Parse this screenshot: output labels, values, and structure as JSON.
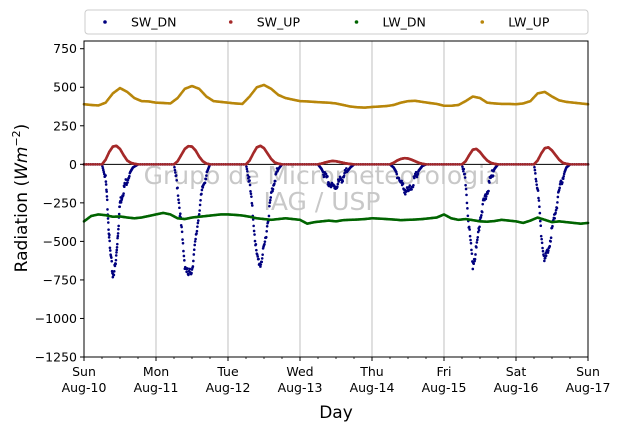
{
  "chart_data": {
    "type": "scatter",
    "xlabel": "Day",
    "ylabel_main": "Radiation (",
    "ylabel_unit": "Wm",
    "ylabel_exp": "−2",
    "ylabel_close": ")",
    "ylim": [
      -1250,
      800
    ],
    "yticks": [
      -1250,
      -1000,
      -750,
      -500,
      -250,
      0,
      250,
      500,
      750
    ],
    "ytick_labels": [
      "−1250",
      "−1000",
      "−750",
      "−500",
      "−250",
      "0",
      "250",
      "500",
      "750"
    ],
    "xlim": [
      0,
      7
    ],
    "xticks": [
      {
        "pos": 0,
        "day": "Sun",
        "date": "Aug-10"
      },
      {
        "pos": 1,
        "day": "Mon",
        "date": "Aug-11"
      },
      {
        "pos": 2,
        "day": "Tue",
        "date": "Aug-12"
      },
      {
        "pos": 3,
        "day": "Wed",
        "date": "Aug-13"
      },
      {
        "pos": 4,
        "day": "Thu",
        "date": "Aug-14"
      },
      {
        "pos": 5,
        "day": "Fri",
        "date": "Aug-15"
      },
      {
        "pos": 6,
        "day": "Sat",
        "date": "Aug-16"
      },
      {
        "pos": 7,
        "day": "Sun",
        "date": "Aug-17"
      }
    ],
    "grid": "vertical",
    "hline_y": 0,
    "legend_position": "top-outside",
    "watermark": [
      "Grupo de Micrometeorologia",
      "IAG / USP"
    ],
    "series": [
      {
        "name": "SW_DN",
        "color": "#00007f",
        "x": [
          0.0,
          0.25,
          0.3,
          0.33,
          0.36,
          0.4,
          0.44,
          0.47,
          0.5,
          0.54,
          0.58,
          0.63,
          0.68,
          0.75,
          1.0,
          1.25,
          1.3,
          1.35,
          1.4,
          1.45,
          1.5,
          1.55,
          1.6,
          1.65,
          1.7,
          1.75,
          2.0,
          2.25,
          2.3,
          2.35,
          2.4,
          2.45,
          2.5,
          2.55,
          2.6,
          2.65,
          2.7,
          2.75,
          3.0,
          3.25,
          3.3,
          3.35,
          3.4,
          3.45,
          3.5,
          3.55,
          3.6,
          3.65,
          3.7,
          3.75,
          4.0,
          4.25,
          4.3,
          4.35,
          4.4,
          4.45,
          4.5,
          4.55,
          4.6,
          4.65,
          4.7,
          4.75,
          5.0,
          5.25,
          5.3,
          5.35,
          5.4,
          5.45,
          5.5,
          5.55,
          5.6,
          5.65,
          5.7,
          5.75,
          6.0,
          6.25,
          6.3,
          6.35,
          6.4,
          6.45,
          6.5,
          6.55,
          6.6,
          6.65,
          6.7,
          6.75,
          7.0
        ],
        "y": [
          0,
          0,
          -100,
          -300,
          -550,
          -720,
          -650,
          -450,
          -250,
          -180,
          -120,
          -60,
          -20,
          0,
          0,
          0,
          -150,
          -400,
          -650,
          -720,
          -680,
          -500,
          -300,
          -150,
          -60,
          0,
          0,
          0,
          -120,
          -350,
          -600,
          -650,
          -550,
          -380,
          -200,
          -90,
          -30,
          0,
          0,
          0,
          -30,
          -80,
          -120,
          -150,
          -140,
          -110,
          -80,
          -50,
          -20,
          0,
          0,
          0,
          -20,
          -60,
          -120,
          -160,
          -180,
          -140,
          -90,
          -40,
          -10,
          0,
          0,
          0,
          -120,
          -420,
          -650,
          -550,
          -350,
          -250,
          -180,
          -90,
          -30,
          0,
          0,
          0,
          -150,
          -450,
          -620,
          -560,
          -420,
          -300,
          -180,
          -80,
          -20,
          0,
          0
        ]
      },
      {
        "name": "SW_UP",
        "color": "#a52a2a",
        "x": [
          0.0,
          0.25,
          0.3,
          0.35,
          0.4,
          0.45,
          0.5,
          0.55,
          0.6,
          0.65,
          0.7,
          0.75,
          1.0,
          1.25,
          1.3,
          1.35,
          1.4,
          1.45,
          1.5,
          1.55,
          1.6,
          1.65,
          1.7,
          1.75,
          2.0,
          2.25,
          2.3,
          2.35,
          2.4,
          2.45,
          2.5,
          2.55,
          2.6,
          2.65,
          2.7,
          2.75,
          3.0,
          3.25,
          3.3,
          3.35,
          3.4,
          3.45,
          3.5,
          3.55,
          3.6,
          3.65,
          3.7,
          3.75,
          4.0,
          4.25,
          4.3,
          4.35,
          4.4,
          4.45,
          4.5,
          4.55,
          4.6,
          4.65,
          4.7,
          4.75,
          5.0,
          5.25,
          5.3,
          5.35,
          5.4,
          5.45,
          5.5,
          5.55,
          5.6,
          5.65,
          5.7,
          5.75,
          6.0,
          6.25,
          6.3,
          6.35,
          6.4,
          6.45,
          6.5,
          6.55,
          6.6,
          6.65,
          6.7,
          6.75,
          7.0
        ],
        "y": [
          0,
          0,
          30,
          80,
          115,
          120,
          100,
          60,
          25,
          10,
          3,
          0,
          0,
          0,
          20,
          60,
          100,
          118,
          115,
          90,
          50,
          20,
          5,
          0,
          0,
          0,
          25,
          70,
          110,
          120,
          105,
          70,
          35,
          12,
          4,
          0,
          0,
          0,
          5,
          12,
          18,
          22,
          20,
          15,
          10,
          5,
          2,
          0,
          0,
          0,
          10,
          25,
          35,
          40,
          38,
          30,
          20,
          10,
          3,
          0,
          0,
          0,
          20,
          60,
          95,
          100,
          80,
          50,
          25,
          10,
          3,
          0,
          0,
          0,
          25,
          70,
          105,
          110,
          90,
          60,
          30,
          10,
          3,
          0,
          0
        ]
      },
      {
        "name": "LW_DN",
        "color": "#006400",
        "x": [
          0.0,
          0.1,
          0.2,
          0.3,
          0.4,
          0.5,
          0.6,
          0.7,
          0.8,
          0.9,
          1.0,
          1.1,
          1.2,
          1.3,
          1.4,
          1.5,
          1.6,
          1.7,
          1.8,
          1.9,
          2.0,
          2.1,
          2.2,
          2.3,
          2.4,
          2.5,
          2.6,
          2.7,
          2.8,
          2.9,
          3.0,
          3.1,
          3.2,
          3.3,
          3.4,
          3.5,
          3.6,
          3.7,
          3.8,
          3.9,
          4.0,
          4.1,
          4.2,
          4.3,
          4.4,
          4.5,
          4.6,
          4.7,
          4.8,
          4.9,
          5.0,
          5.1,
          5.2,
          5.3,
          5.4,
          5.5,
          5.6,
          5.7,
          5.8,
          5.9,
          6.0,
          6.1,
          6.2,
          6.3,
          6.4,
          6.5,
          6.6,
          6.7,
          6.8,
          6.9,
          7.0
        ],
        "y": [
          -370,
          -335,
          -325,
          -330,
          -340,
          -338,
          -345,
          -350,
          -345,
          -335,
          -325,
          -315,
          -325,
          -350,
          -355,
          -345,
          -340,
          -335,
          -330,
          -325,
          -325,
          -328,
          -332,
          -340,
          -350,
          -355,
          -360,
          -355,
          -350,
          -355,
          -360,
          -385,
          -375,
          -370,
          -365,
          -370,
          -362,
          -360,
          -358,
          -355,
          -350,
          -352,
          -355,
          -358,
          -362,
          -360,
          -358,
          -355,
          -350,
          -345,
          -325,
          -350,
          -360,
          -355,
          -362,
          -370,
          -372,
          -368,
          -360,
          -365,
          -370,
          -380,
          -365,
          -345,
          -360,
          -375,
          -370,
          -375,
          -380,
          -385,
          -380
        ]
      },
      {
        "name": "LW_UP",
        "color": "#b8860b",
        "x": [
          0.0,
          0.1,
          0.2,
          0.3,
          0.4,
          0.5,
          0.6,
          0.7,
          0.8,
          0.9,
          1.0,
          1.1,
          1.2,
          1.3,
          1.4,
          1.5,
          1.6,
          1.7,
          1.8,
          1.9,
          2.0,
          2.1,
          2.2,
          2.3,
          2.4,
          2.5,
          2.6,
          2.7,
          2.8,
          2.9,
          3.0,
          3.1,
          3.2,
          3.3,
          3.4,
          3.5,
          3.6,
          3.7,
          3.8,
          3.9,
          4.0,
          4.1,
          4.2,
          4.3,
          4.4,
          4.5,
          4.6,
          4.7,
          4.8,
          4.9,
          5.0,
          5.1,
          5.2,
          5.3,
          5.4,
          5.5,
          5.6,
          5.7,
          5.8,
          5.9,
          6.0,
          6.1,
          6.2,
          6.3,
          6.4,
          6.5,
          6.6,
          6.7,
          6.8,
          6.9,
          7.0
        ],
        "y": [
          390,
          385,
          382,
          400,
          460,
          495,
          470,
          430,
          410,
          408,
          400,
          398,
          395,
          430,
          490,
          508,
          490,
          440,
          410,
          405,
          400,
          395,
          392,
          440,
          500,
          515,
          490,
          450,
          430,
          420,
          410,
          408,
          405,
          402,
          400,
          395,
          385,
          375,
          370,
          368,
          372,
          375,
          378,
          385,
          400,
          410,
          412,
          405,
          398,
          392,
          380,
          380,
          385,
          410,
          440,
          430,
          400,
          395,
          392,
          392,
          390,
          395,
          410,
          460,
          470,
          440,
          415,
          405,
          400,
          395,
          390
        ]
      }
    ]
  }
}
